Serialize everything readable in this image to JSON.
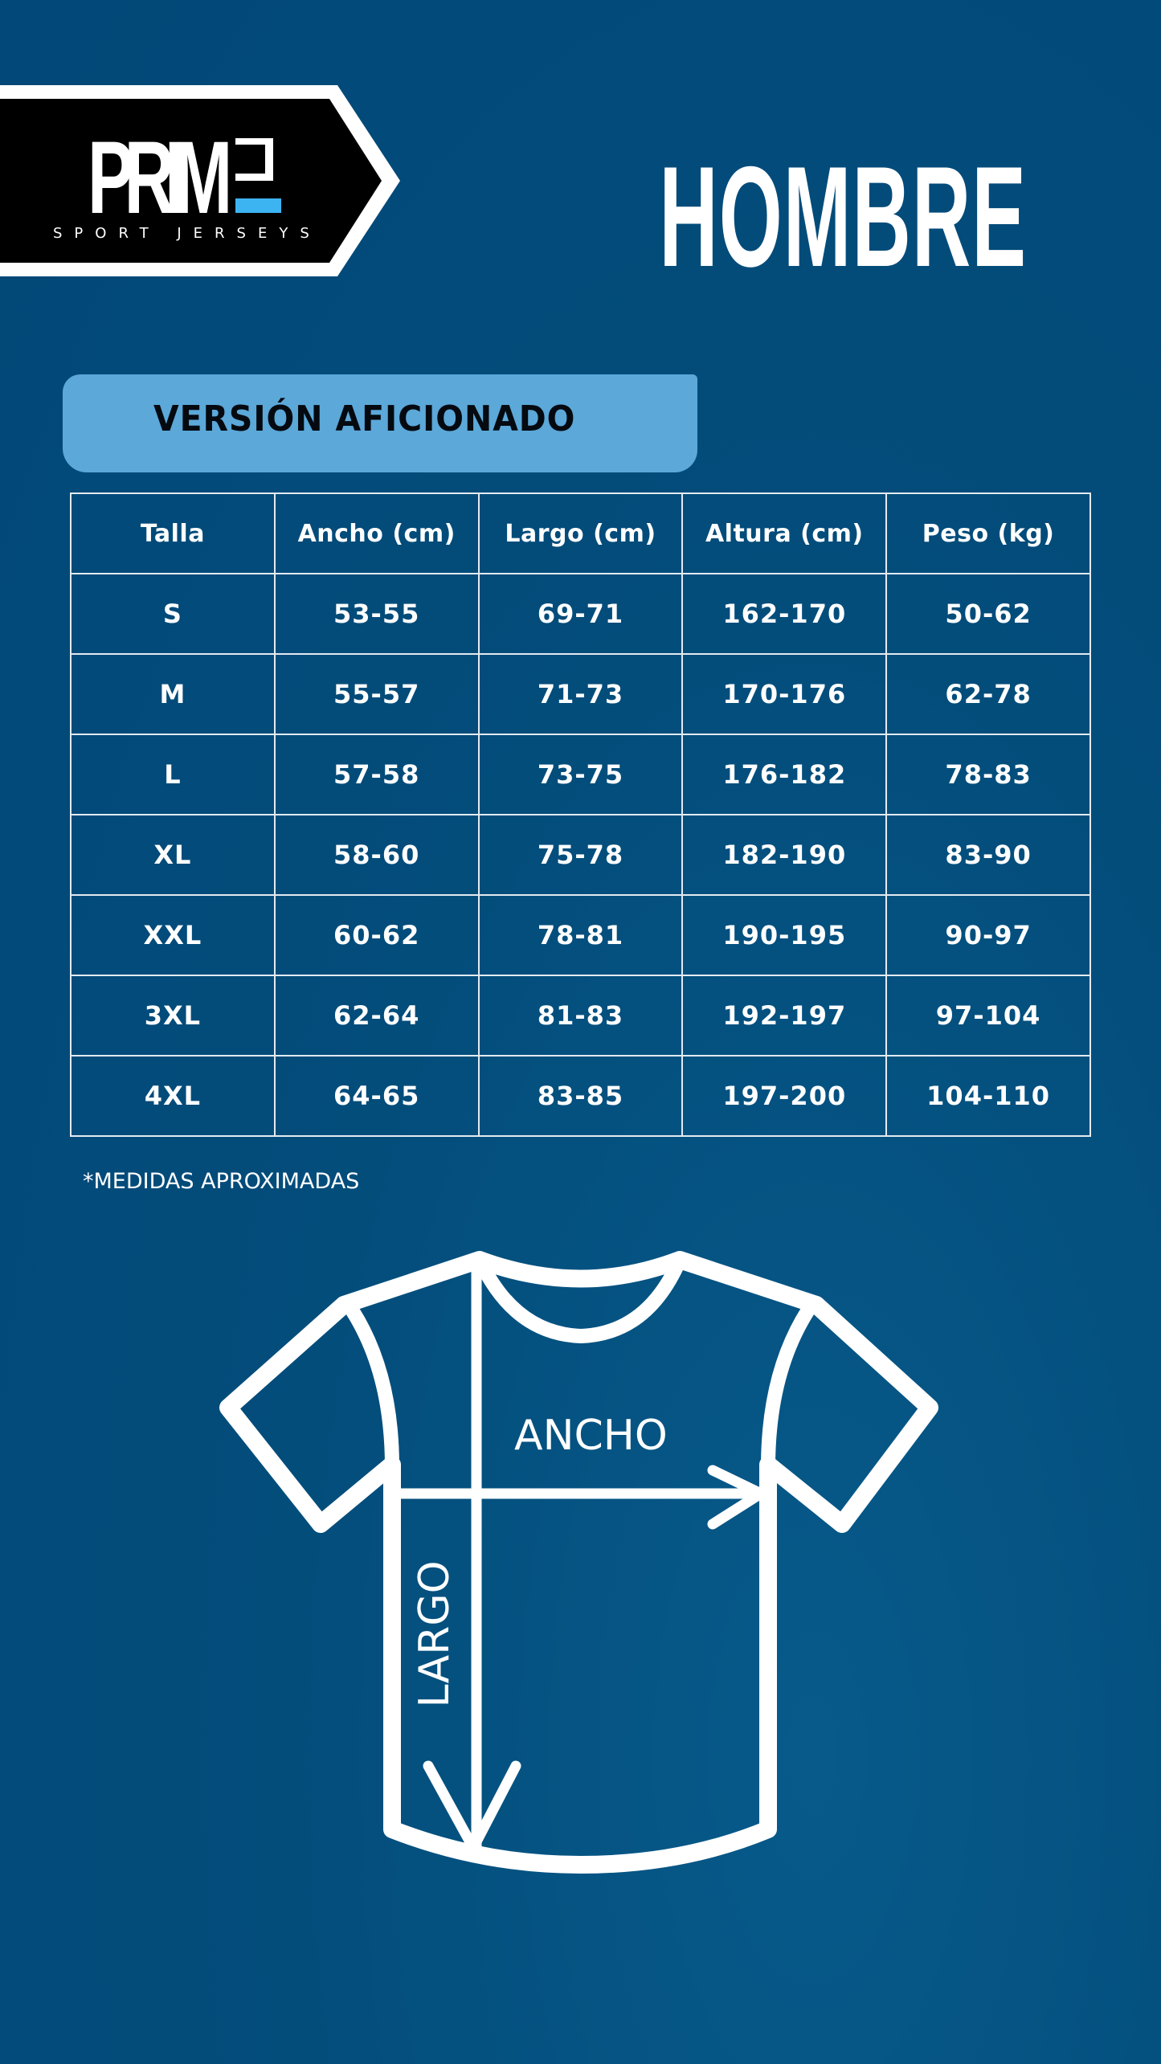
{
  "logo": {
    "wordmark": "PRIME",
    "tagline": "SPORT JERSEYS",
    "accent": "#3db4f2"
  },
  "header": {
    "title": "HOMBRE"
  },
  "version_label": "VERSIÓN AFICIONADO",
  "table": {
    "headers": [
      "Talla",
      "Ancho (cm)",
      "Largo (cm)",
      "Altura (cm)",
      "Peso (kg)"
    ],
    "rows": [
      [
        "S",
        "53-55",
        "69-71",
        "162-170",
        "50-62"
      ],
      [
        "M",
        "55-57",
        "71-73",
        "170-176",
        "62-78"
      ],
      [
        "L",
        "57-58",
        "73-75",
        "176-182",
        "78-83"
      ],
      [
        "XL",
        "58-60",
        "75-78",
        "182-190",
        "83-90"
      ],
      [
        "XXL",
        "60-62",
        "78-81",
        "190-195",
        "90-97"
      ],
      [
        "3XL",
        "62-64",
        "81-83",
        "192-197",
        "97-104"
      ],
      [
        "4XL",
        "64-65",
        "83-85",
        "197-200",
        "104-110"
      ]
    ]
  },
  "note": "*MEDIDAS APROXIMADAS",
  "diagram": {
    "width_label": "ANCHO",
    "length_label": "LARGO"
  },
  "colors": {
    "background": "#034d7b",
    "pill": "#5ba8d9",
    "logo_box": "#000000"
  }
}
